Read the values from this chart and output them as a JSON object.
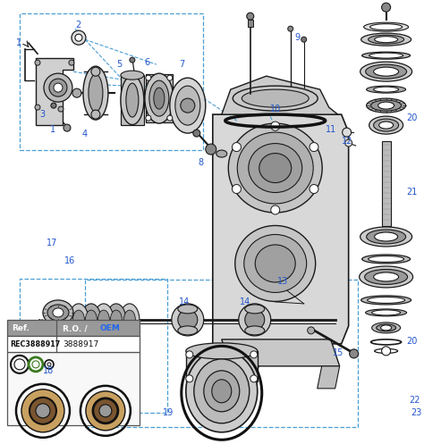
{
  "bg": "#ffffff",
  "lc": "#1a1a1a",
  "dlc": "#4a9fd4",
  "lbl": "#2255cc",
  "ref_label": "Ref.",
  "ro_oem_label": "R.O. /",
  "oem_label": "OEM",
  "rec_num": "REC3888917",
  "oem_num": "3888917",
  "fig_width": 4.74,
  "fig_height": 4.97,
  "dpi": 100
}
